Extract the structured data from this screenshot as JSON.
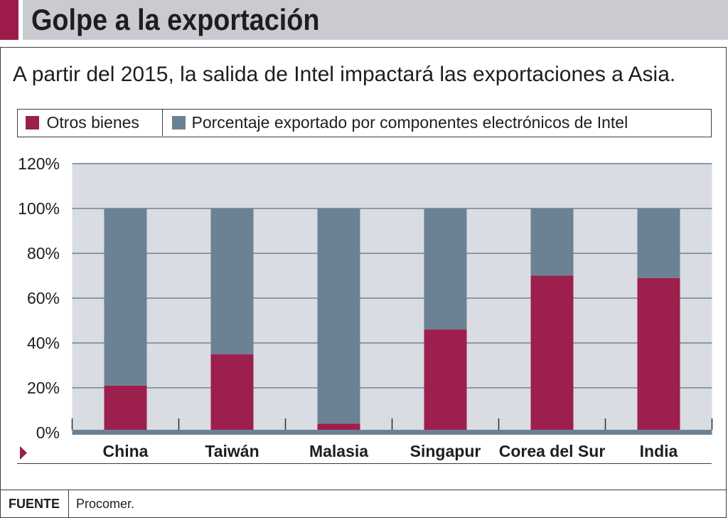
{
  "chart_data": {
    "type": "bar",
    "stacked": true,
    "title": "Golpe a la exportación",
    "subtitle": "A partir del 2015, la salida de Intel impactará las exportaciones a Asia.",
    "xlabel": "",
    "ylabel": "",
    "categories": [
      "China",
      "Taiwán",
      "Malasia",
      "Singapur",
      "Corea del Sur",
      "India"
    ],
    "series": [
      {
        "name": "Otros bienes",
        "color": "#9d1f4e",
        "values": [
          21,
          35,
          4,
          46,
          70,
          69
        ]
      },
      {
        "name": "Porcentaje exportado por componentes electrónicos de Intel",
        "color": "#6b8294",
        "values": [
          79,
          65,
          96,
          54,
          30,
          31
        ]
      }
    ],
    "ylim": [
      0,
      120
    ],
    "yticks": [
      0,
      20,
      40,
      60,
      80,
      100,
      120
    ],
    "ytick_labels": [
      "0%",
      "20%",
      "40%",
      "60%",
      "80%",
      "100%",
      "120%"
    ],
    "grid": true,
    "legend_position": "top"
  },
  "source": {
    "label": "FUENTE",
    "text": "Procomer."
  },
  "colors": {
    "accent": "#9d1c4c",
    "header_background": "#c9cbd0",
    "plot_background": "#d9dce2",
    "gridline": "#6f8396",
    "baseline": "#6b8294",
    "frame": "#3d3d3d"
  },
  "icons": {
    "axis_marker": "right-pointing-triangle-icon"
  }
}
